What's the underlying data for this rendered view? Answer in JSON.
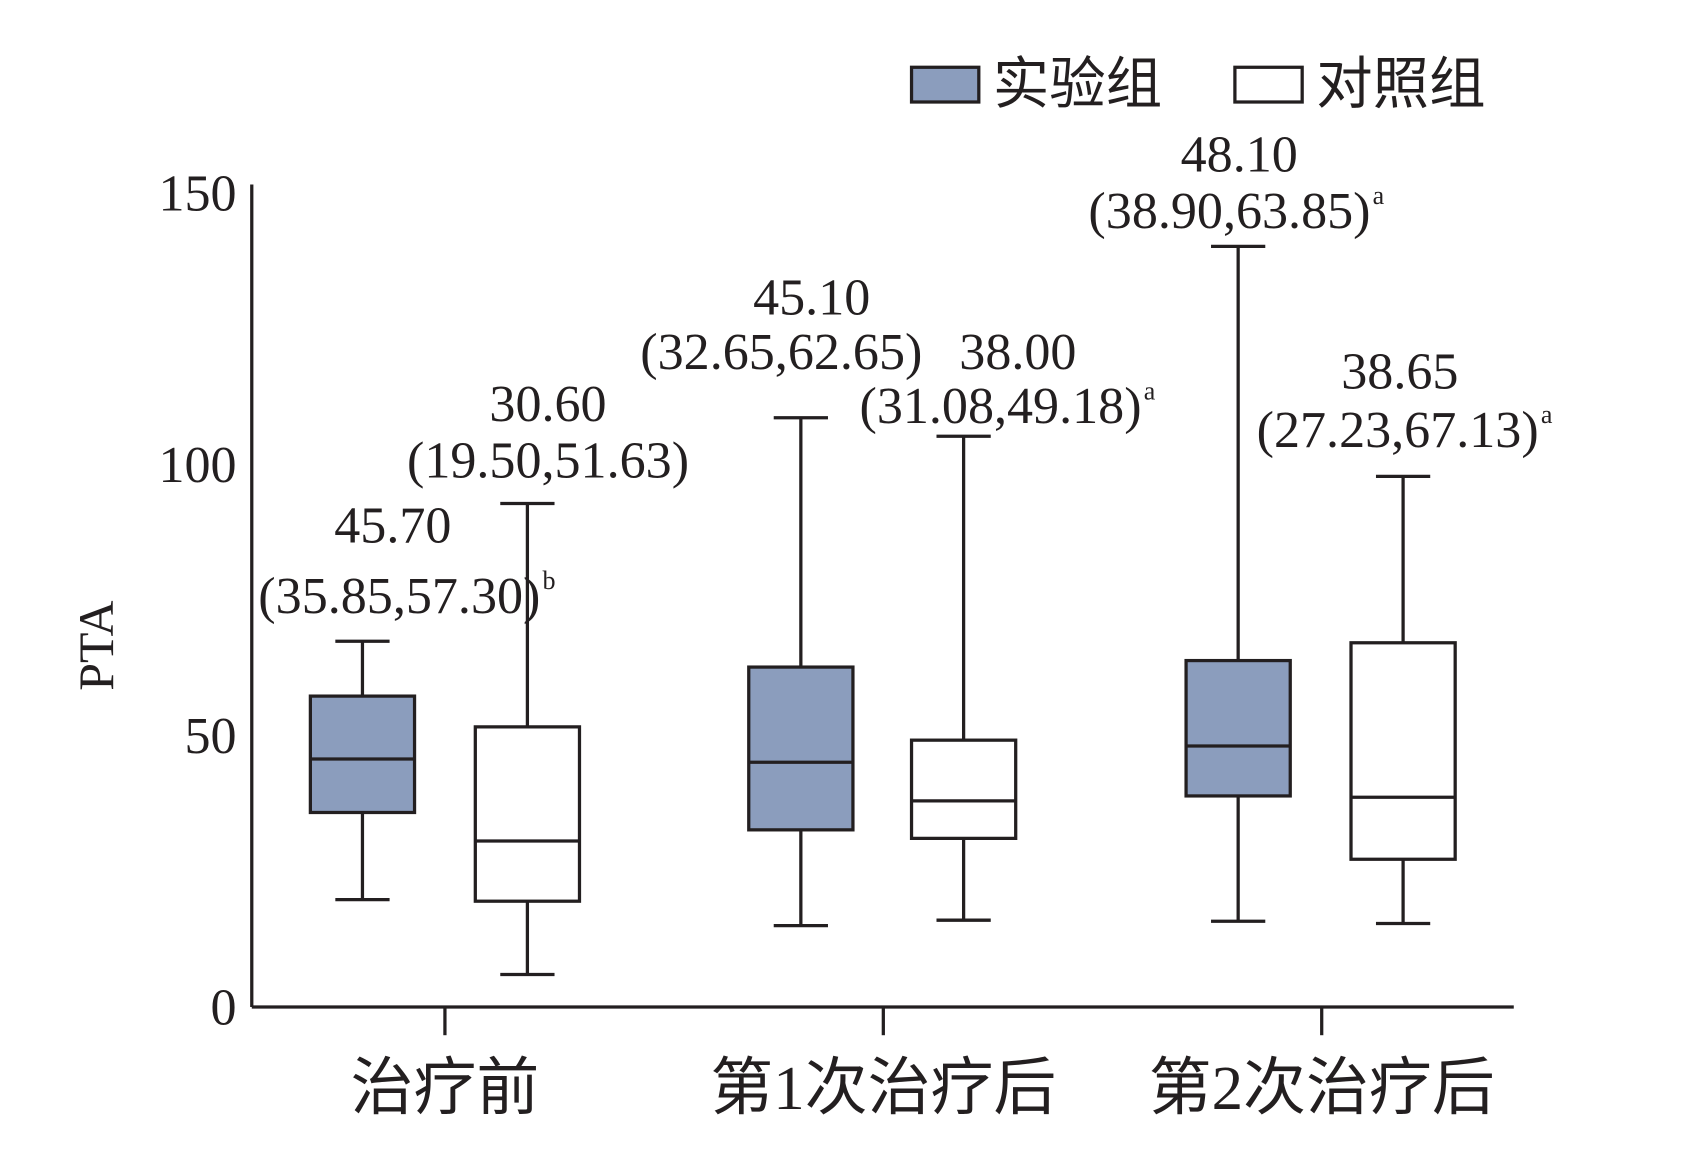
{
  "chart_data": {
    "type": "box",
    "title": "",
    "xlabel": "",
    "ylabel": "PTA",
    "ylim": [
      0,
      150
    ],
    "yticks": [
      "0",
      "50",
      "100",
      "150"
    ],
    "categories": [
      "治疗前",
      "第1次治疗后",
      "第2次治疗后"
    ],
    "grid": false,
    "legend_position": "top-right",
    "series": [
      {
        "name": "实验组",
        "color": "#8b9dbd",
        "boxes": [
          {
            "whisker_low": 19.8,
            "q1": 35.85,
            "median": 45.7,
            "q3": 57.3,
            "whisker_high": 67.4
          },
          {
            "whisker_low": 15.0,
            "q1": 32.65,
            "median": 45.1,
            "q3": 62.65,
            "whisker_high": 108.6
          },
          {
            "whisker_low": 15.8,
            "q1": 38.9,
            "median": 48.1,
            "q3": 63.85,
            "whisker_high": 140.2
          }
        ]
      },
      {
        "name": "对照组",
        "color": "#ffffff",
        "boxes": [
          {
            "whisker_low": 6.0,
            "q1": 19.5,
            "median": 30.6,
            "q3": 51.63,
            "whisker_high": 92.8
          },
          {
            "whisker_low": 16.0,
            "q1": 31.08,
            "median": 38.0,
            "q3": 49.18,
            "whisker_high": 105.2
          },
          {
            "whisker_low": 15.4,
            "q1": 27.23,
            "median": 38.65,
            "q3": 67.13,
            "whisker_high": 97.8
          }
        ]
      }
    ],
    "annotations": [
      {
        "median": "45.70",
        "range": "(35.85,57.30)",
        "sup": "b"
      },
      {
        "median": "30.60",
        "range": "(19.50,51.63)",
        "sup": ""
      },
      {
        "median": "45.10",
        "range": "(32.65,62.65)",
        "sup": ""
      },
      {
        "median": "38.00",
        "range": "(31.08,49.18)",
        "sup": "a"
      },
      {
        "median": "48.10",
        "range": "(38.90,63.85)",
        "sup": "a"
      },
      {
        "median": "38.65",
        "range": "(27.23,67.13)",
        "sup": "a"
      }
    ],
    "axis_color": "#231f20"
  }
}
